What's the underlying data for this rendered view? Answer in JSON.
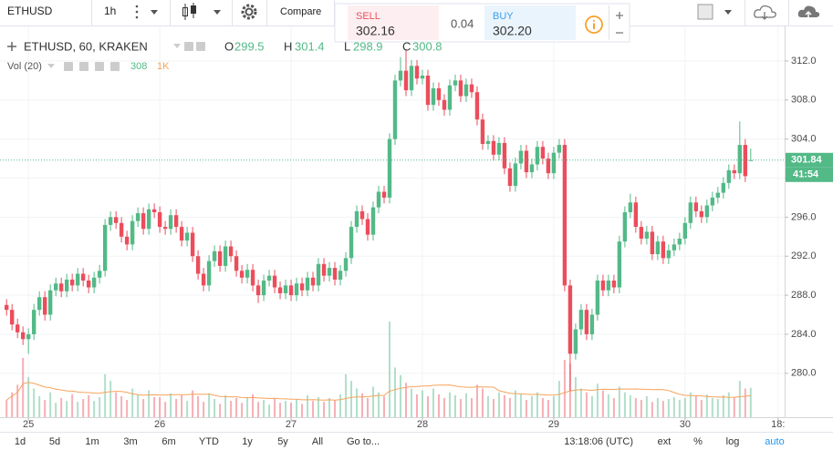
{
  "toolbar": {
    "symbol": "ETHUSD",
    "interval": "1h",
    "compare": "Compare"
  },
  "trade": {
    "sell_label": "SELL",
    "sell_price": "302.16",
    "spread": "0.04",
    "buy_label": "BUY",
    "buy_price": "302.20"
  },
  "legend": {
    "symbol_label": "ETHUSD, 60, KRAKEN",
    "ohlc_letters": [
      "O",
      "H",
      "L",
      "C"
    ],
    "volume_label": "Vol (20)",
    "volume_ma_label": "1K"
  },
  "chart_data": {
    "type": "candlestick",
    "xlim": [
      -5.2,
      138.2
    ],
    "xticks": [
      {
        "value": 0,
        "label": "25"
      },
      {
        "value": 24,
        "label": "26"
      },
      {
        "value": 48,
        "label": "27"
      },
      {
        "value": 72,
        "label": "28"
      },
      {
        "value": 96,
        "label": "29"
      },
      {
        "value": 120,
        "label": "30"
      },
      {
        "value": 137,
        "label": "18:"
      }
    ],
    "ylim": [
      275.5,
      314.7
    ],
    "yticks": [
      {
        "value": 280,
        "label": "280.0"
      },
      {
        "value": 284,
        "label": "284.0"
      },
      {
        "value": 288,
        "label": "288.0"
      },
      {
        "value": 292,
        "label": "292.0"
      },
      {
        "value": 296,
        "label": "296.0"
      },
      {
        "value": 300,
        "label": "300.0"
      },
      {
        "value": 304,
        "label": "304.0"
      },
      {
        "value": 308,
        "label": "308.0"
      },
      {
        "value": 312,
        "label": "312.0"
      }
    ],
    "y2lim": [
      0,
      4000
    ],
    "grid": true,
    "up_color": "#53b987",
    "down_color": "#eb4d5c",
    "ma_color": "#f7a35c",
    "countdown": "41:54",
    "x": [
      -4,
      -3,
      -2,
      -1,
      0,
      1,
      2,
      3,
      4,
      5,
      6,
      7,
      8,
      9,
      10,
      11,
      12,
      13,
      14,
      15,
      16,
      17,
      18,
      19,
      20,
      21,
      22,
      23,
      24,
      25,
      26,
      27,
      28,
      29,
      30,
      31,
      32,
      33,
      34,
      35,
      36,
      37,
      38,
      39,
      40,
      41,
      42,
      43,
      44,
      45,
      46,
      47,
      48,
      49,
      50,
      51,
      52,
      53,
      54,
      55,
      56,
      57,
      58,
      59,
      60,
      61,
      62,
      63,
      64,
      65,
      66,
      67,
      68,
      69,
      70,
      71,
      72,
      73,
      74,
      75,
      76,
      77,
      78,
      79,
      80,
      81,
      82,
      83,
      84,
      85,
      86,
      87,
      88,
      89,
      90,
      91,
      92,
      93,
      94,
      95,
      96,
      97,
      98,
      99,
      100,
      101,
      102,
      103,
      104,
      105,
      106,
      107,
      108,
      109,
      110,
      111,
      112,
      113,
      114,
      115,
      116,
      117,
      118,
      119,
      120,
      121,
      122,
      123,
      124,
      125,
      126,
      127,
      128,
      129,
      130,
      131,
      132
    ],
    "candles": [
      [
        287.0,
        287.6,
        285.9,
        286.5
      ],
      [
        286.5,
        287.1,
        284.4,
        285.0
      ],
      [
        285.0,
        285.6,
        283.6,
        284.2
      ],
      [
        284.2,
        284.8,
        282.9,
        283.5
      ],
      [
        283.5,
        284.6,
        282.0,
        284.0
      ],
      [
        284.0,
        287.1,
        283.4,
        286.5
      ],
      [
        286.5,
        288.4,
        285.9,
        287.8
      ],
      [
        287.8,
        288.4,
        285.4,
        286.0
      ],
      [
        286.0,
        289.1,
        285.4,
        288.5
      ],
      [
        288.5,
        289.8,
        287.9,
        289.2
      ],
      [
        289.2,
        289.8,
        287.8,
        288.4
      ],
      [
        288.4,
        290.2,
        287.8,
        289.6
      ],
      [
        289.6,
        290.2,
        288.4,
        289.0
      ],
      [
        289.0,
        290.8,
        288.4,
        290.2
      ],
      [
        290.2,
        290.8,
        288.9,
        289.5
      ],
      [
        289.5,
        290.1,
        288.2,
        288.8
      ],
      [
        288.8,
        290.4,
        288.2,
        289.8
      ],
      [
        289.8,
        291.1,
        289.2,
        290.5
      ],
      [
        290.5,
        295.8,
        289.9,
        295.2
      ],
      [
        295.2,
        296.6,
        294.6,
        296.0
      ],
      [
        296.0,
        296.6,
        294.8,
        295.4
      ],
      [
        295.4,
        296.0,
        293.4,
        294.0
      ],
      [
        294.0,
        294.6,
        292.6,
        293.2
      ],
      [
        293.2,
        296.2,
        292.6,
        295.6
      ],
      [
        295.6,
        297.0,
        295.0,
        296.4
      ],
      [
        296.4,
        297.0,
        294.2,
        294.8
      ],
      [
        294.8,
        297.4,
        294.2,
        296.8
      ],
      [
        296.8,
        297.4,
        295.9,
        296.5
      ],
      [
        296.5,
        297.1,
        294.4,
        295.0
      ],
      [
        295.0,
        295.6,
        294.2,
        294.8
      ],
      [
        294.8,
        296.8,
        294.2,
        296.2
      ],
      [
        296.2,
        296.8,
        294.4,
        295.0
      ],
      [
        295.0,
        295.6,
        293.0,
        293.6
      ],
      [
        293.6,
        295.0,
        293.0,
        294.4
      ],
      [
        294.4,
        295.0,
        291.4,
        292.0
      ],
      [
        292.0,
        292.6,
        289.6,
        290.2
      ],
      [
        290.2,
        290.8,
        288.4,
        289.0
      ],
      [
        289.0,
        292.1,
        288.4,
        291.5
      ],
      [
        291.5,
        293.1,
        290.9,
        292.5
      ],
      [
        292.5,
        293.1,
        290.4,
        291.0
      ],
      [
        291.0,
        293.6,
        290.4,
        293.0
      ],
      [
        293.0,
        293.6,
        291.4,
        292.0
      ],
      [
        292.0,
        292.6,
        289.9,
        290.5
      ],
      [
        290.5,
        291.1,
        289.2,
        289.8
      ],
      [
        289.8,
        291.2,
        289.2,
        290.6
      ],
      [
        290.6,
        291.2,
        288.4,
        289.0
      ],
      [
        289.0,
        289.6,
        287.2,
        288.0
      ],
      [
        288.0,
        290.1,
        287.4,
        289.5
      ],
      [
        289.5,
        290.6,
        288.9,
        290.0
      ],
      [
        290.0,
        290.6,
        288.2,
        288.8
      ],
      [
        288.8,
        289.4,
        287.6,
        288.2
      ],
      [
        288.2,
        289.6,
        287.6,
        289.0
      ],
      [
        289.0,
        289.6,
        287.4,
        288.0
      ],
      [
        288.0,
        289.8,
        287.4,
        289.2
      ],
      [
        289.2,
        289.8,
        287.9,
        288.5
      ],
      [
        288.5,
        290.4,
        287.9,
        289.8
      ],
      [
        289.8,
        290.4,
        288.4,
        289.0
      ],
      [
        289.0,
        291.8,
        288.4,
        291.2
      ],
      [
        291.2,
        291.8,
        289.4,
        290.0
      ],
      [
        290.0,
        291.4,
        289.4,
        290.8
      ],
      [
        290.8,
        291.4,
        289.0,
        289.6
      ],
      [
        289.6,
        291.1,
        289.0,
        290.5
      ],
      [
        290.5,
        292.4,
        289.9,
        291.8
      ],
      [
        291.8,
        295.6,
        291.2,
        295.0
      ],
      [
        295.0,
        297.2,
        294.4,
        296.6
      ],
      [
        296.6,
        297.2,
        295.2,
        295.8
      ],
      [
        295.8,
        296.4,
        293.6,
        294.2
      ],
      [
        294.2,
        297.6,
        293.6,
        297.0
      ],
      [
        297.0,
        299.2,
        296.4,
        298.6
      ],
      [
        298.6,
        299.2,
        297.4,
        298.0
      ],
      [
        298.0,
        304.6,
        297.4,
        304.0
      ],
      [
        304.0,
        310.6,
        303.4,
        310.0
      ],
      [
        310.0,
        312.4,
        309.4,
        311.0
      ],
      [
        311.0,
        313.2,
        308.4,
        309.0
      ],
      [
        309.0,
        312.1,
        308.4,
        311.5
      ],
      [
        311.5,
        312.1,
        309.6,
        310.2
      ],
      [
        310.2,
        311.1,
        309.6,
        310.5
      ],
      [
        310.5,
        311.1,
        306.9,
        307.5
      ],
      [
        307.5,
        309.8,
        306.9,
        309.2
      ],
      [
        309.2,
        309.8,
        307.4,
        308.0
      ],
      [
        308.0,
        308.6,
        306.4,
        307.0
      ],
      [
        307.0,
        310.1,
        306.4,
        309.5
      ],
      [
        309.5,
        310.6,
        308.9,
        310.0
      ],
      [
        310.0,
        310.6,
        307.8,
        308.4
      ],
      [
        308.4,
        310.2,
        307.8,
        309.6
      ],
      [
        309.6,
        310.2,
        308.2,
        308.8
      ],
      [
        308.8,
        309.4,
        305.4,
        306.0
      ],
      [
        306.0,
        306.6,
        302.9,
        303.5
      ],
      [
        303.5,
        304.4,
        302.9,
        303.8
      ],
      [
        303.8,
        304.4,
        301.8,
        302.4
      ],
      [
        302.4,
        304.2,
        301.8,
        303.6
      ],
      [
        303.6,
        304.2,
        300.4,
        301.0
      ],
      [
        301.0,
        301.6,
        298.6,
        299.2
      ],
      [
        299.2,
        302.1,
        298.6,
        301.5
      ],
      [
        301.5,
        303.4,
        300.9,
        302.8
      ],
      [
        302.8,
        303.4,
        300.0,
        300.6
      ],
      [
        300.6,
        302.0,
        300.0,
        301.4
      ],
      [
        301.4,
        303.8,
        300.8,
        303.2
      ],
      [
        303.2,
        303.8,
        301.4,
        302.0
      ],
      [
        302.0,
        302.6,
        299.9,
        300.5
      ],
      [
        300.5,
        303.2,
        299.9,
        302.6
      ],
      [
        302.6,
        304.0,
        302.0,
        303.4
      ],
      [
        303.4,
        304.0,
        288.4,
        289.0
      ],
      [
        289.0,
        289.6,
        278.2,
        282.0
      ],
      [
        282.0,
        285.1,
        281.4,
        284.5
      ],
      [
        284.5,
        287.1,
        283.9,
        286.5
      ],
      [
        286.5,
        287.1,
        283.4,
        284.0
      ],
      [
        284.0,
        286.6,
        283.4,
        286.0
      ],
      [
        286.0,
        290.1,
        285.4,
        289.5
      ],
      [
        289.5,
        290.1,
        287.9,
        288.5
      ],
      [
        288.5,
        290.1,
        287.9,
        289.5
      ],
      [
        289.5,
        290.1,
        288.2,
        288.8
      ],
      [
        288.8,
        294.1,
        288.2,
        293.5
      ],
      [
        293.5,
        297.1,
        292.9,
        296.5
      ],
      [
        296.5,
        298.4,
        295.9,
        297.5
      ],
      [
        297.5,
        298.1,
        294.4,
        295.0
      ],
      [
        295.0,
        295.6,
        293.2,
        293.8
      ],
      [
        293.8,
        295.1,
        293.2,
        294.5
      ],
      [
        294.5,
        295.1,
        291.6,
        292.2
      ],
      [
        292.2,
        294.1,
        291.6,
        293.5
      ],
      [
        293.5,
        294.1,
        291.2,
        291.8
      ],
      [
        291.8,
        293.2,
        291.2,
        292.6
      ],
      [
        292.6,
        293.8,
        292.0,
        293.2
      ],
      [
        293.2,
        294.4,
        292.6,
        293.8
      ],
      [
        293.8,
        296.0,
        293.2,
        295.4
      ],
      [
        295.4,
        298.1,
        294.8,
        297.5
      ],
      [
        297.5,
        298.1,
        296.0,
        296.6
      ],
      [
        296.6,
        297.2,
        295.4,
        296.0
      ],
      [
        296.0,
        297.8,
        295.4,
        297.2
      ],
      [
        297.2,
        298.6,
        296.6,
        298.0
      ],
      [
        298.0,
        299.1,
        297.4,
        298.5
      ],
      [
        298.5,
        300.1,
        297.9,
        299.5
      ],
      [
        299.5,
        301.4,
        298.9,
        300.8
      ],
      [
        300.8,
        301.4,
        299.9,
        300.5
      ],
      [
        300.5,
        305.8,
        299.9,
        303.4
      ],
      [
        303.4,
        304.0,
        299.6,
        300.2
      ],
      [
        301.77,
        303.03,
        301.77,
        301.84
      ]
    ],
    "volume": [
      180,
      260,
      340,
      620,
      420,
      300,
      220,
      180,
      260,
      150,
      200,
      170,
      240,
      160,
      190,
      230,
      170,
      210,
      450,
      380,
      260,
      220,
      180,
      300,
      240,
      190,
      280,
      210,
      210,
      160,
      250,
      190,
      230,
      170,
      280,
      220,
      160,
      250,
      190,
      140,
      230,
      170,
      200,
      150,
      210,
      240,
      160,
      180,
      130,
      200,
      150,
      170,
      150,
      190,
      140,
      230,
      170,
      210,
      160,
      200,
      180,
      240,
      450,
      380,
      300,
      250,
      200,
      320,
      260,
      220,
      1000,
      520,
      440,
      360,
      300,
      240,
      280,
      220,
      300,
      240,
      200,
      260,
      230,
      190,
      250,
      200,
      340,
      300,
      220,
      190,
      260,
      230,
      200,
      280,
      240,
      180,
      220,
      260,
      200,
      180,
      220,
      380,
      600,
      560,
      420,
      300,
      260,
      220,
      350,
      280,
      240,
      200,
      320,
      260,
      230,
      200,
      180,
      220,
      160,
      200,
      170,
      190,
      210,
      180,
      200,
      260,
      220,
      180,
      240,
      200,
      190,
      230,
      260,
      210,
      380,
      300,
      308
    ]
  },
  "bottom_bar": {
    "ranges": [
      "1d",
      "5d",
      "1m",
      "3m",
      "6m",
      "YTD",
      "1y",
      "5y",
      "All"
    ],
    "goto": "Go to...",
    "clock": "13:18:06 (UTC)",
    "options": [
      "ext",
      "%",
      "log",
      "auto"
    ]
  }
}
